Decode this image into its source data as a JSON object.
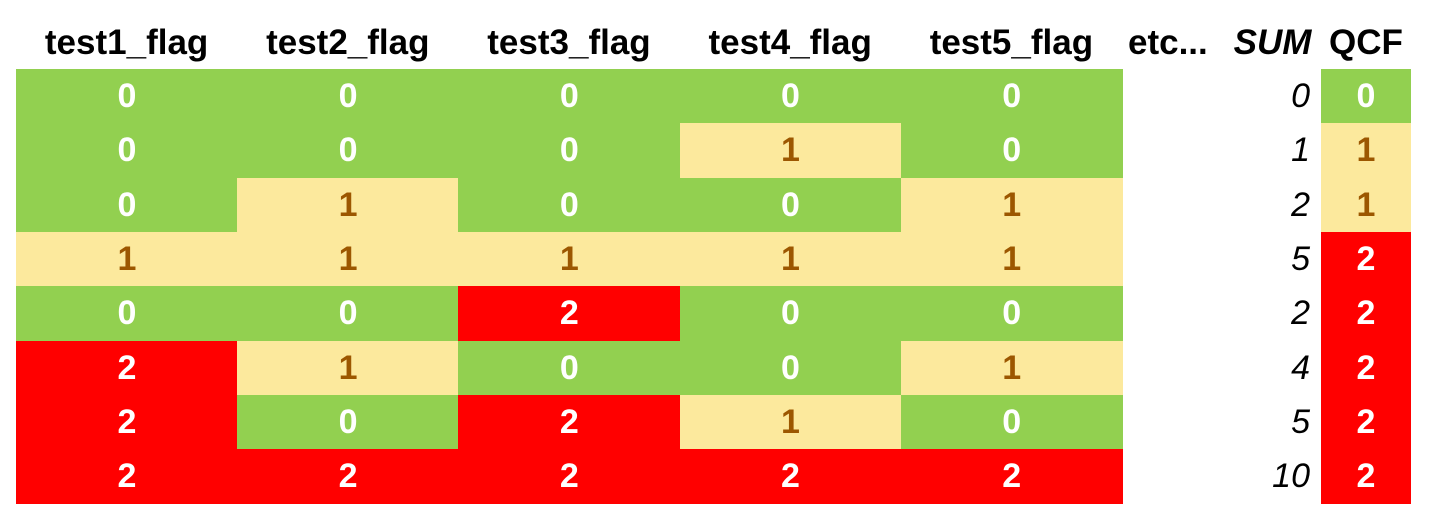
{
  "chart_data": {
    "type": "table",
    "columns": [
      "test1_flag",
      "test2_flag",
      "test3_flag",
      "test4_flag",
      "test5_flag"
    ],
    "etc_label": "etc...",
    "sum_label": "SUM",
    "qcf_label": "QCF",
    "rows": [
      {
        "flags": [
          "0",
          "0",
          "0",
          "0",
          "0"
        ],
        "sum": "0",
        "qcf": "0"
      },
      {
        "flags": [
          "0",
          "0",
          "0",
          "1",
          "0"
        ],
        "sum": "1",
        "qcf": "1"
      },
      {
        "flags": [
          "0",
          "1",
          "0",
          "0",
          "1"
        ],
        "sum": "2",
        "qcf": "1"
      },
      {
        "flags": [
          "1",
          "1",
          "1",
          "1",
          "1"
        ],
        "sum": "5",
        "qcf": "2"
      },
      {
        "flags": [
          "0",
          "0",
          "2",
          "0",
          "0"
        ],
        "sum": "2",
        "qcf": "2"
      },
      {
        "flags": [
          "2",
          "1",
          "0",
          "0",
          "1"
        ],
        "sum": "4",
        "qcf": "2"
      },
      {
        "flags": [
          "2",
          "0",
          "2",
          "1",
          "0"
        ],
        "sum": "5",
        "qcf": "2"
      },
      {
        "flags": [
          "2",
          "2",
          "2",
          "2",
          "2"
        ],
        "sum": "10",
        "qcf": "2"
      }
    ],
    "value_colors": {
      "0": {
        "bg": "#92d050",
        "fg": "#ffffff"
      },
      "1": {
        "bg": "#fce99d",
        "fg": "#9c5700"
      },
      "2": {
        "bg": "#ff0000",
        "fg": "#ffffff"
      }
    }
  }
}
